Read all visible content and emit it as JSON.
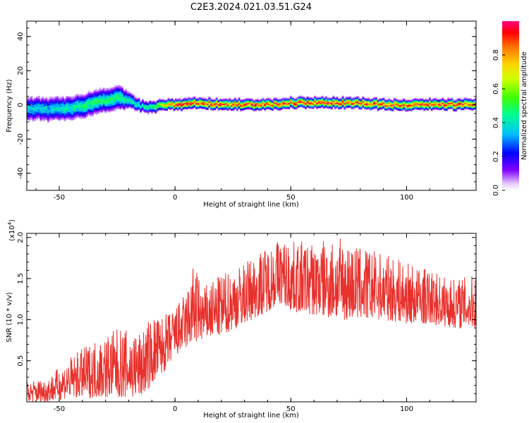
{
  "title": "C2E3.2024.021.03.51.G24",
  "colors": {
    "snr_line": "#e8312d",
    "axis": "#000000"
  },
  "chart_data": [
    {
      "type": "heatmap",
      "xlabel": "Height of straight line (km)",
      "ylabel": "Frequency (Hz)",
      "xlim": [
        -64,
        130
      ],
      "ylim": [
        -50,
        49
      ],
      "xticks": [
        -50,
        0,
        50,
        100
      ],
      "xtick_labels": [
        "-50",
        "0",
        "50",
        "100"
      ],
      "yticks": [
        -40,
        -20,
        0,
        20,
        40
      ],
      "ytick_labels": [
        "-40",
        "-20",
        "0",
        "20",
        "40"
      ],
      "colorbar": {
        "label": "Normalized spectral amplitude",
        "range": [
          0,
          1
        ],
        "ticks": [
          0.0,
          0.2,
          0.4,
          0.6,
          0.8
        ],
        "tick_labels": [
          "0.0",
          "0.2",
          "0.4",
          "0.6",
          "0.8"
        ]
      },
      "ridge": {
        "x": [
          -64,
          -55,
          -45,
          -38,
          -32,
          -28,
          -24,
          -20,
          -15,
          -10,
          -5,
          0,
          10,
          20,
          30,
          40,
          50,
          60,
          70,
          80,
          90,
          100,
          110,
          120,
          130
        ],
        "freq": [
          -2,
          -3,
          -2,
          0,
          2,
          3,
          4,
          2,
          -1,
          -2,
          0,
          0,
          1,
          0,
          0,
          0,
          1,
          1,
          1,
          1,
          0,
          0,
          0,
          0,
          0
        ],
        "half_width": [
          6,
          6,
          6,
          6,
          6,
          6,
          6,
          4,
          3,
          3,
          2.5,
          2.5,
          2.5,
          2.5,
          2.5,
          2.5,
          2.5,
          2.5,
          2.5,
          2.5,
          2.5,
          2.5,
          2.5,
          2.5,
          2.5
        ],
        "peak_amplitude": [
          0.4,
          0.4,
          0.45,
          0.5,
          0.5,
          0.5,
          0.5,
          0.45,
          0.45,
          0.5,
          0.8,
          0.95,
          0.95,
          0.95,
          0.95,
          0.95,
          0.95,
          0.95,
          0.95,
          0.95,
          0.95,
          0.95,
          0.95,
          0.95,
          0.95
        ]
      }
    },
    {
      "type": "line",
      "xlabel": "Height of straight line (km)",
      "ylabel": "SNR (10 * v/v)",
      "y_scale_label": "(x10",
      "y_scale_exp": "4",
      "xlim": [
        -64,
        130
      ],
      "ylim": [
        0,
        2.05
      ],
      "xticks": [
        -50,
        0,
        50,
        100
      ],
      "xtick_labels": [
        "-50",
        "0",
        "50",
        "100"
      ],
      "yticks": [
        0.5,
        1.0,
        1.5,
        2.0
      ],
      "ytick_labels": [
        "0.5",
        "1.0",
        "1.5",
        "2.0"
      ],
      "series": [
        {
          "envelope": {
            "x": [
              -64,
              -55,
              -45,
              -35,
              -25,
              -15,
              -10,
              -5,
              0,
              5,
              8,
              12,
              20,
              30,
              40,
              45,
              50,
              60,
              70,
              80,
              90,
              100,
              110,
              120,
              130
            ],
            "low": [
              0.0,
              0.0,
              0.05,
              0.05,
              0.05,
              0.05,
              0.2,
              0.35,
              0.55,
              0.65,
              0.7,
              0.75,
              0.8,
              0.95,
              1.1,
              1.2,
              1.1,
              1.05,
              1.0,
              1.0,
              1.0,
              0.95,
              0.95,
              0.9,
              0.9
            ],
            "high": [
              0.25,
              0.3,
              0.55,
              0.75,
              0.9,
              0.85,
              1.05,
              1.05,
              1.15,
              1.35,
              1.7,
              1.4,
              1.55,
              1.7,
              1.9,
              2.0,
              1.95,
              1.95,
              2.0,
              1.9,
              1.8,
              1.7,
              1.6,
              1.5,
              1.55
            ]
          }
        }
      ]
    }
  ]
}
